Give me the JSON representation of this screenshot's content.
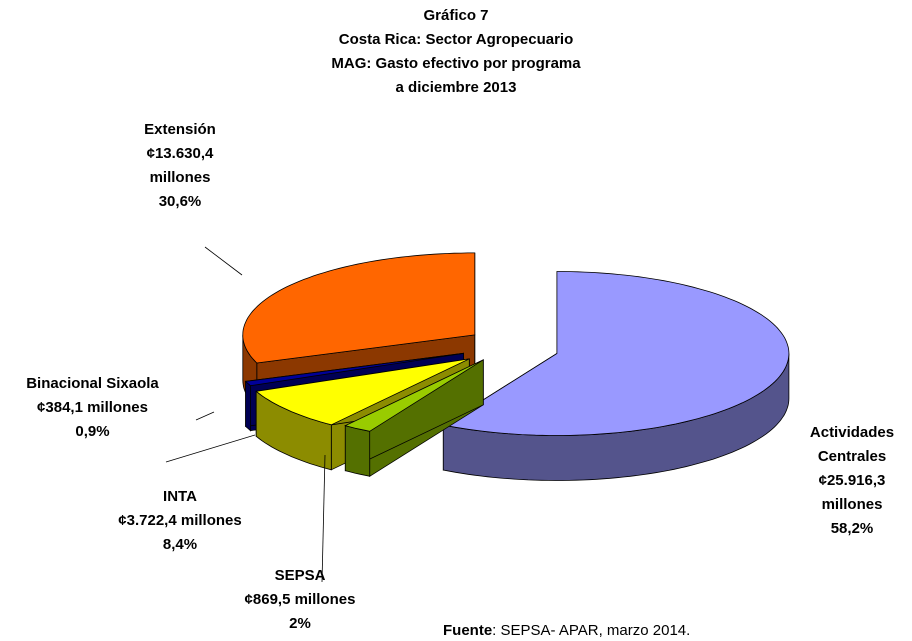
{
  "chart_data": {
    "type": "pie",
    "title": [
      "Gráfico 7",
      "Costa Rica: Sector Agropecuario",
      "MAG: Gasto efectivo por programa",
      "a diciembre 2013"
    ],
    "categories": [
      "Actividades Centrales",
      "SEPSA",
      "INTA",
      "Binacional Sixaola",
      "Extensión"
    ],
    "amount_labels": [
      "¢25.916,3 millones",
      "¢869,5 millones",
      "¢3.722,4 millones",
      "¢384,1 millones",
      "¢13.630,4 millones"
    ],
    "values": [
      58.2,
      2,
      8.4,
      0.9,
      30.6
    ],
    "value_labels": [
      "58,2%",
      "2%",
      "8,4%",
      "0,9%",
      "30,6%"
    ],
    "colors": [
      "#9999ff",
      "#99cc00",
      "#ffff00",
      "#000099",
      "#ff6600"
    ],
    "source_label": "Fuente",
    "source_text": ": SEPSA- APAR, marzo 2014."
  }
}
